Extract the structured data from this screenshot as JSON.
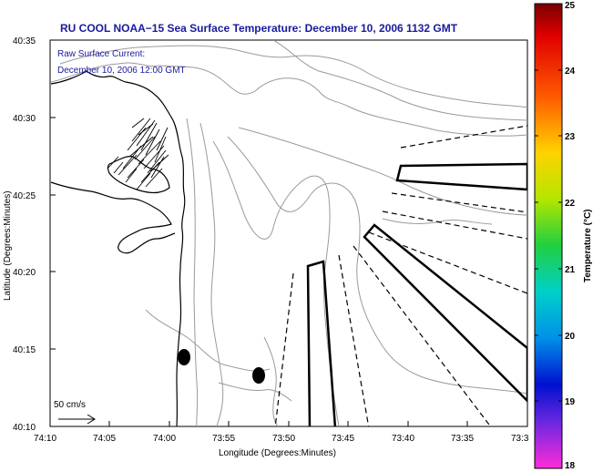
{
  "title": "RU COOL  NOAA−15  Sea Surface Temperature:  December 10, 2006 1132 GMT",
  "current_note": {
    "line1": "Raw Surface Current:",
    "line2": "December 10, 2006 12:00 GMT"
  },
  "scale_label": "50 cm/s",
  "axes": {
    "xlabel": "Longitude (Degrees:Minutes)",
    "ylabel": "Latitude (Degrees:Minutes)",
    "x_ticks": [
      "74:10",
      "74:05",
      "74:00",
      "73:55",
      "73:50",
      "73:45",
      "73:40",
      "73:35",
      "73:3"
    ],
    "y_ticks": [
      "40:35",
      "40:30",
      "40:25",
      "40:20",
      "40:15",
      "40:10"
    ]
  },
  "colorbar": {
    "label": "Temperature (°C)",
    "ticks": [
      "25",
      "24",
      "23",
      "22",
      "21",
      "20",
      "19",
      "18"
    ]
  },
  "colors": {
    "title": "#1a1a9c",
    "bathymetry": "#9a9a9a",
    "coast": "#000000"
  }
}
